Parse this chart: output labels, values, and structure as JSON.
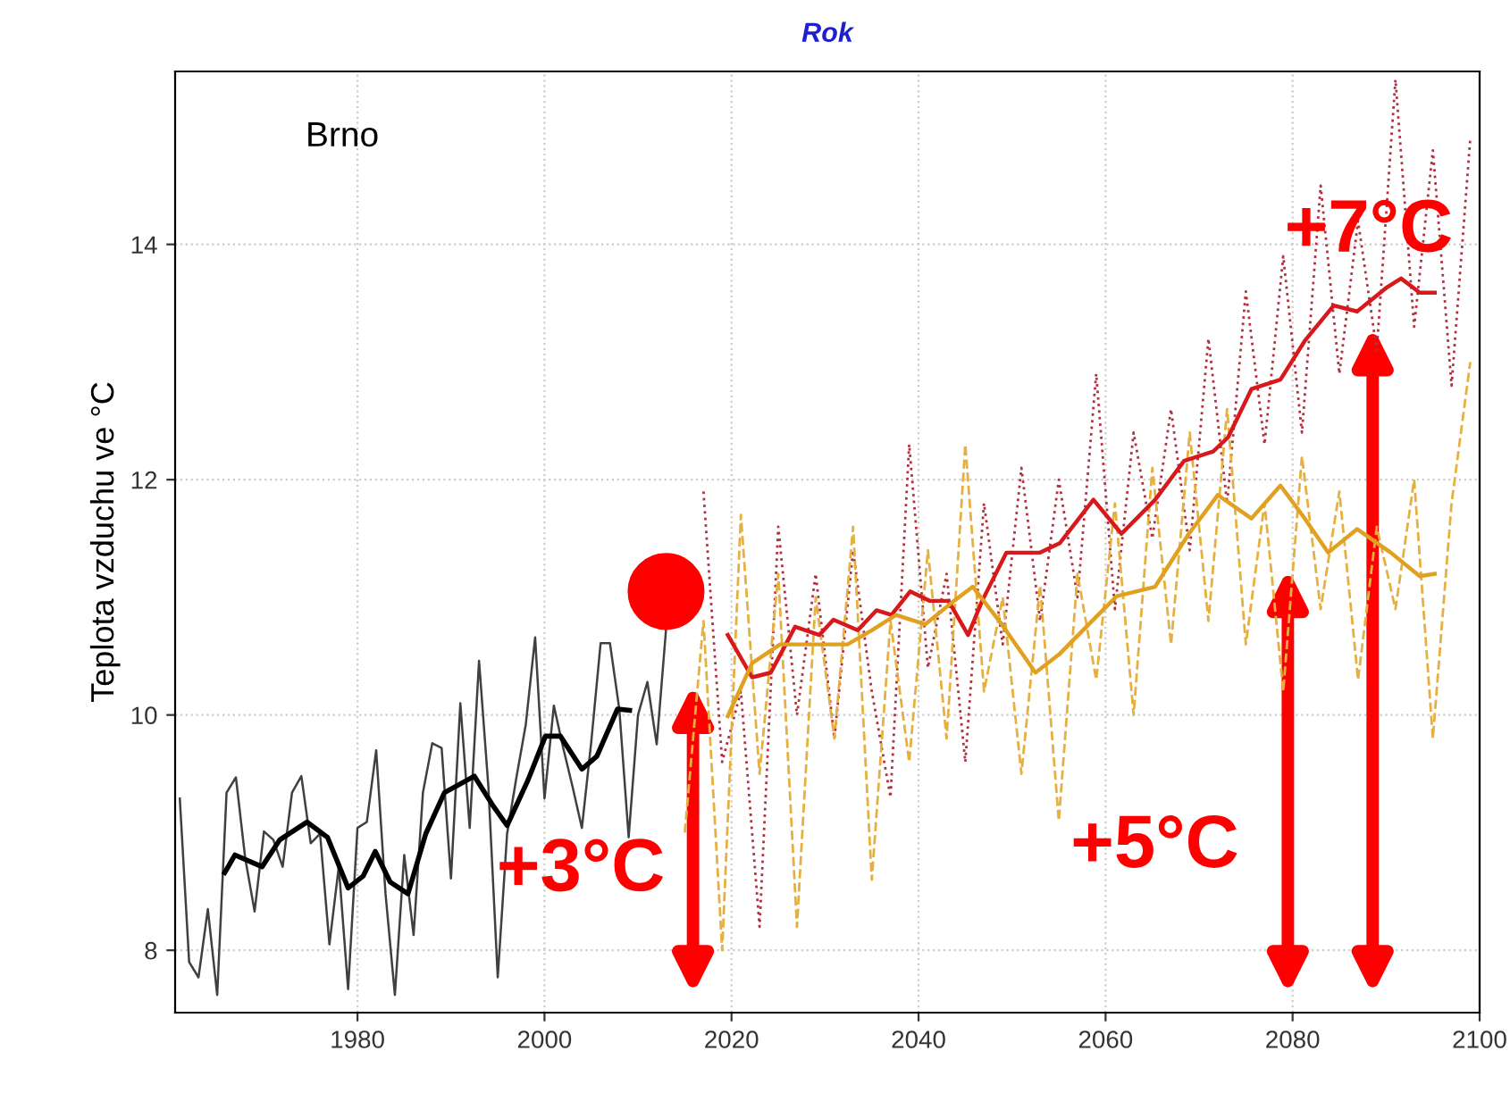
{
  "chart_data": {
    "type": "line",
    "title": "Rok",
    "ylabel": "Teplota vzduchu ve °C",
    "xlim": [
      1960.5,
      2100
    ],
    "ylim": [
      7.47,
      15.47
    ],
    "xticks": [
      1980,
      2000,
      2020,
      2040,
      2060,
      2080,
      2100
    ],
    "yticks": [
      8,
      10,
      12,
      14
    ],
    "grid": true,
    "legend": false,
    "annotations": [
      "Brno",
      "+3°C",
      "+5°C",
      "+7°C"
    ],
    "series": [
      {
        "color": "#b03040",
        "line_style": "dotted",
        "x": [
          2017,
          2019,
          2021,
          2023,
          2025,
          2027,
          2029,
          2031,
          2033,
          2035,
          2037,
          2039,
          2041,
          2043,
          2045,
          2047,
          2049,
          2051,
          2053,
          2055,
          2057,
          2059,
          2061,
          2063,
          2065,
          2067,
          2069,
          2071,
          2073,
          2075,
          2077,
          2079,
          2081,
          2083,
          2085,
          2087,
          2089,
          2091,
          2093,
          2095,
          2097,
          2099
        ],
        "values": [
          11.9,
          9.6,
          10.2,
          8.2,
          11.6,
          10.0,
          11.2,
          9.8,
          11.4,
          10.2,
          9.3,
          12.3,
          10.4,
          11.2,
          9.6,
          11.8,
          10.6,
          12.1,
          10.8,
          12.0,
          11.0,
          12.9,
          10.9,
          12.4,
          11.5,
          12.6,
          11.4,
          13.2,
          11.8,
          13.6,
          12.3,
          13.9,
          12.4,
          14.5,
          12.9,
          14.2,
          13.1,
          15.4,
          13.3,
          14.8,
          12.8,
          14.9
        ]
      },
      {
        "color": "#e6b040",
        "line_style": "dashed",
        "x": [
          2015,
          2017,
          2019,
          2021,
          2023,
          2025,
          2027,
          2029,
          2031,
          2033,
          2035,
          2037,
          2039,
          2041,
          2043,
          2045,
          2047,
          2049,
          2051,
          2053,
          2055,
          2057,
          2059,
          2061,
          2063,
          2065,
          2067,
          2069,
          2071,
          2073,
          2075,
          2077,
          2079,
          2081,
          2083,
          2085,
          2087,
          2089,
          2091,
          2093,
          2095,
          2097,
          2099
        ],
        "values": [
          9.0,
          10.8,
          8.0,
          11.7,
          9.5,
          11.2,
          8.2,
          11.0,
          9.8,
          11.6,
          8.6,
          10.8,
          9.6,
          11.4,
          9.8,
          12.3,
          10.2,
          11.0,
          9.5,
          11.1,
          9.1,
          11.2,
          10.3,
          11.8,
          10.0,
          12.1,
          10.6,
          12.4,
          10.8,
          12.6,
          10.6,
          11.8,
          10.2,
          12.2,
          10.9,
          11.9,
          10.3,
          11.6,
          10.9,
          12.0,
          9.8,
          11.8,
          13.0
        ]
      },
      {
        "color": "#404040",
        "line_style": "solid",
        "x": [
          1961,
          1962,
          1963,
          1964,
          1965,
          1966,
          1967,
          1968,
          1969,
          1970,
          1971,
          1972,
          1973,
          1974,
          1975,
          1976,
          1977,
          1978,
          1979,
          1980,
          1981,
          1982,
          1983,
          1984,
          1985,
          1986,
          1987,
          1988,
          1989,
          1990,
          1991,
          1992,
          1993,
          1994,
          1995,
          1996,
          1997,
          1998,
          1999,
          2000,
          2001,
          2002,
          2003,
          2004,
          2005,
          2006,
          2007,
          2008,
          2009,
          2010,
          2011,
          2012,
          2013
        ],
        "values": [
          9.29,
          7.9,
          7.77,
          8.35,
          7.62,
          9.34,
          9.47,
          8.78,
          8.33,
          9.01,
          8.94,
          8.71,
          9.34,
          9.48,
          8.91,
          8.99,
          8.05,
          8.71,
          7.67,
          9.04,
          9.09,
          9.7,
          8.48,
          7.62,
          8.81,
          8.13,
          9.34,
          9.76,
          9.72,
          8.61,
          10.1,
          9.04,
          10.46,
          9.39,
          7.77,
          8.99,
          9.47,
          9.92,
          10.66,
          9.29,
          10.08,
          9.72,
          9.39,
          9.04,
          9.77,
          10.61,
          10.61,
          10.05,
          8.96,
          10.0,
          10.28,
          9.75,
          10.73
        ]
      },
      {
        "color": "#000000",
        "line_style": "solid",
        "x": [
          1965.8,
          1966.9,
          1969.8,
          1971.7,
          1974.6,
          1976.8,
          1979,
          1980.6,
          1981.9,
          1983.5,
          1985.4,
          1987.3,
          1989.3,
          1992.5,
          1994.4,
          1996,
          1998.2,
          2000.1,
          2001.7,
          2004,
          2005.6,
          2007.8,
          2009.1
        ],
        "values": [
          8.66,
          8.81,
          8.71,
          8.94,
          9.09,
          8.96,
          8.53,
          8.63,
          8.84,
          8.58,
          8.48,
          8.99,
          9.34,
          9.48,
          9.24,
          9.06,
          9.44,
          9.82,
          9.82,
          9.54,
          9.65,
          10.05,
          10.04
        ]
      },
      {
        "color": "#d7191c",
        "line_style": "solid",
        "x": [
          2019.6,
          2022.2,
          2024.2,
          2026.8,
          2029.4,
          2030.9,
          2033.5,
          2035.5,
          2037.1,
          2039.1,
          2041.2,
          2043.2,
          2045.3,
          2046.8,
          2049.4,
          2053,
          2055.1,
          2058.7,
          2061.7,
          2065.3,
          2068.4,
          2071.5,
          2073.1,
          2075.6,
          2078.7,
          2081.3,
          2084.4,
          2086.9,
          2090,
          2091.6,
          2093.6,
          2095.2
        ],
        "values": [
          10.68,
          10.32,
          10.36,
          10.75,
          10.68,
          10.81,
          10.72,
          10.89,
          10.85,
          11.05,
          10.97,
          10.97,
          10.68,
          10.97,
          11.38,
          11.38,
          11.46,
          11.83,
          11.54,
          11.83,
          12.16,
          12.24,
          12.36,
          12.77,
          12.85,
          13.18,
          13.48,
          13.43,
          13.63,
          13.71,
          13.59,
          13.59
        ]
      },
      {
        "color": "#e0a020",
        "line_style": "solid",
        "x": [
          2019.6,
          2022.2,
          2025.2,
          2029.4,
          2032.4,
          2035,
          2037.6,
          2040.7,
          2043.8,
          2045.8,
          2048.9,
          2052.5,
          2055.1,
          2059.2,
          2061.2,
          2065.3,
          2068.9,
          2072,
          2075.6,
          2078.7,
          2081.3,
          2083.8,
          2086.9,
          2090.5,
          2093.6,
          2095.2
        ],
        "values": [
          9.99,
          10.44,
          10.6,
          10.6,
          10.6,
          10.72,
          10.85,
          10.77,
          10.97,
          11.09,
          10.77,
          10.36,
          10.52,
          10.85,
          11.01,
          11.09,
          11.54,
          11.87,
          11.67,
          11.95,
          11.67,
          11.38,
          11.58,
          11.38,
          11.18,
          11.2
        ]
      },
      {
        "type": "scatter",
        "color": "#ff0000",
        "marker": "circle",
        "x": [
          2013
        ],
        "values": [
          11.05
        ]
      }
    ]
  }
}
